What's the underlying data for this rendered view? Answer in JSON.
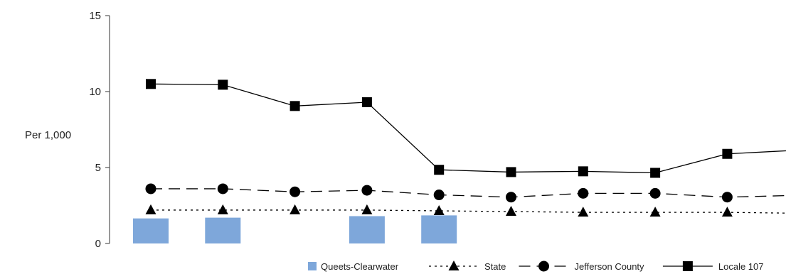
{
  "chart_data": {
    "type": "bar+line",
    "ylabel": "Per 1,000",
    "ylim": [
      0,
      15
    ],
    "yticks": [
      0,
      5,
      10,
      15
    ],
    "grid": false,
    "legend_position": "bottom-right",
    "point_count": 10,
    "colors": {
      "bar": "#7ea7da",
      "line": "#000000"
    },
    "bars": {
      "name": "Queets-Clearwater",
      "values": [
        1.65,
        1.7,
        null,
        1.8,
        1.85,
        null,
        null,
        null,
        null,
        null
      ]
    },
    "series": [
      {
        "name": "State",
        "marker": "triangle",
        "dash": "dotted",
        "values": [
          2.2,
          2.2,
          2.2,
          2.2,
          2.15,
          2.1,
          2.05,
          2.05,
          2.05,
          2.0
        ]
      },
      {
        "name": "Jefferson County",
        "marker": "circle",
        "dash": "dashed",
        "values": [
          3.6,
          3.6,
          3.4,
          3.5,
          3.2,
          3.05,
          3.3,
          3.3,
          3.05,
          3.15
        ]
      },
      {
        "name": "Locale 107",
        "marker": "square",
        "dash": "solid",
        "values": [
          10.5,
          10.45,
          9.05,
          9.3,
          4.85,
          4.7,
          4.75,
          4.65,
          5.9,
          6.1
        ]
      }
    ]
  }
}
